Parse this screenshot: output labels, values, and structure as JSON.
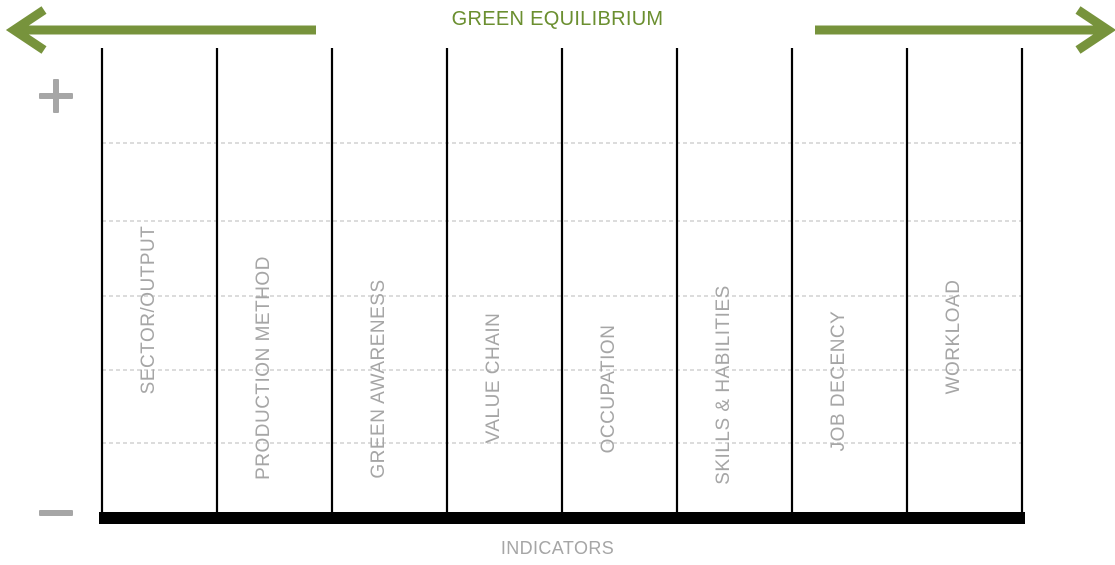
{
  "title": "GREEN EQUILIBRIUM",
  "x_axis_label": "INDICATORS",
  "indicators": [
    "SECTOR/OUTPUT",
    "PRODUCTION METHOD",
    "GREEN AWARENESS",
    "VALUE CHAIN",
    "OCCUPATION",
    "SKILLS & HABILITIES",
    "JOB DECENCY",
    "WORKLOAD"
  ],
  "scale_top_symbol": "+",
  "scale_bottom_symbol": "−",
  "colors": {
    "arrow_green": "#77933c",
    "title_green": "#6b8f30",
    "gray_text": "#a6a6a6",
    "symbol_gray": "#a6a6a6",
    "grid_dashed": "#c8c8c8",
    "column_line": "#000000"
  },
  "icons": {
    "left_arrow": "arrow-left-icon",
    "right_arrow": "arrow-right-icon",
    "plus": "plus-icon",
    "minus": "minus-icon"
  }
}
